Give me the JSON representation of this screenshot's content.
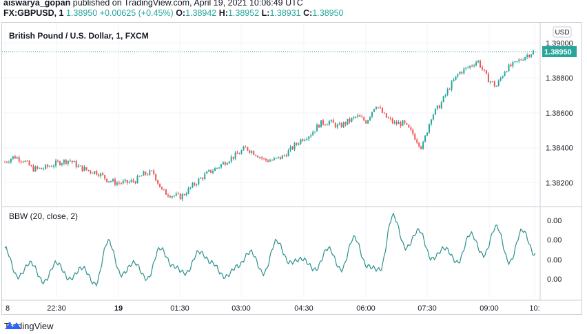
{
  "header": {
    "author": "aiswarya_gopan",
    "published_text": "published on TradingView.com, April 19, 2021 10:06:49 UTC"
  },
  "ohlc_bar": {
    "symbol": "FX:GBPUSD, 1",
    "last": "1.38950",
    "change": "+0.00625 (+0.45%)",
    "o_label": "O:",
    "o": "1.38942",
    "h_label": "H:",
    "h": "1.38952",
    "l_label": "L:",
    "l": "1.38931",
    "c_label": "C:",
    "c": "1.38950"
  },
  "colors": {
    "up": "#26a69a",
    "down": "#ef5350",
    "indicator": "#2a8f8c",
    "grid": "#f0f3fa"
  },
  "footer": {
    "brand": "TradingView",
    "icon": "tradingview-logo-icon"
  },
  "chart_data": [
    {
      "type": "candlestick",
      "title": "British Pound / U.S. Dollar, 1, FXCM",
      "currency_label": "USD",
      "y_ticks": [
        1.382,
        1.384,
        1.386,
        1.388,
        1.39
      ],
      "y_tick_labels": [
        "1.38200",
        "1.38400",
        "1.38600",
        "1.38800",
        "1.39000"
      ],
      "ylim": [
        1.3808,
        1.3908
      ],
      "last_price": 1.3895,
      "last_price_label": "1.38950",
      "close_path": [
        1.3832,
        1.3835,
        1.3833,
        1.3828,
        1.3828,
        1.383,
        1.3832,
        1.3833,
        1.3829,
        1.3827,
        1.3826,
        1.3822,
        1.382,
        1.382,
        1.3821,
        1.3825,
        1.3826,
        1.3815,
        1.3813,
        1.3812,
        1.3817,
        1.3822,
        1.3826,
        1.3829,
        1.3833,
        1.3836,
        1.384,
        1.3837,
        1.3833,
        1.3833,
        1.3835,
        1.384,
        1.3845,
        1.3848,
        1.3854,
        1.3855,
        1.3852,
        1.3855,
        1.3858,
        1.3855,
        1.3865,
        1.3858,
        1.3854,
        1.3854,
        1.3848,
        1.384,
        1.3858,
        1.3865,
        1.3875,
        1.3883,
        1.3886,
        1.389,
        1.388,
        1.3875,
        1.3885,
        1.3888,
        1.3892,
        1.3895
      ],
      "x_ticks": [
        "8",
        "22:30",
        "19",
        "01:30",
        "03:00",
        "04:30",
        "06:00",
        "07:30",
        "09:00",
        "10:"
      ]
    },
    {
      "type": "line",
      "title": "BBW (20, close, 2)",
      "y_tick_labels": [
        "0.00",
        "0.00",
        "0.00",
        "0.00"
      ],
      "peaks": [
        0.55,
        0.15,
        0.35,
        0.08,
        0.35,
        0.12,
        0.28,
        0.05,
        0.65,
        0.18,
        0.35,
        0.12,
        0.55,
        0.3,
        0.2,
        0.5,
        0.35,
        0.15,
        0.3,
        0.5,
        0.2,
        0.65,
        0.35,
        0.4,
        0.25,
        0.55,
        0.25,
        0.7,
        0.3,
        0.25,
        1.0,
        0.55,
        0.8,
        0.4,
        0.55,
        0.35,
        0.75,
        0.45,
        0.85,
        0.35,
        0.8,
        0.45
      ]
    }
  ]
}
